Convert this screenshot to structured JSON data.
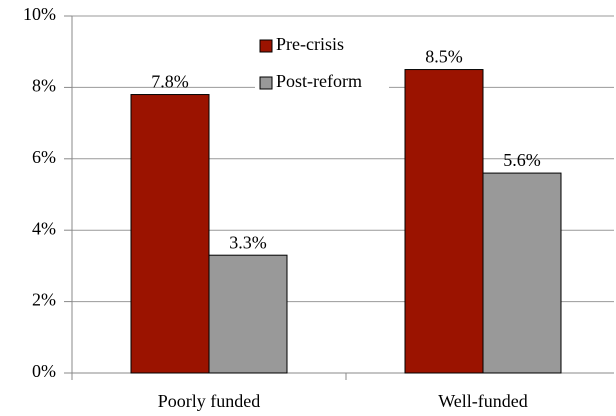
{
  "chart_data": {
    "type": "bar",
    "categories": [
      "Poorly funded",
      "Well-funded"
    ],
    "series": [
      {
        "name": "Pre-crisis",
        "color": "#9b1300",
        "values": [
          7.8,
          8.5
        ],
        "value_labels": [
          "7.8%",
          "8.5%"
        ]
      },
      {
        "name": "Post-reform",
        "color": "#999999",
        "values": [
          3.3,
          5.6
        ],
        "value_labels": [
          "3.3%",
          "5.6%"
        ]
      }
    ],
    "ylim": [
      0,
      10
    ],
    "yticks": [
      {
        "value": 0,
        "label": "0%"
      },
      {
        "value": 2,
        "label": "2%"
      },
      {
        "value": 4,
        "label": "4%"
      },
      {
        "value": 6,
        "label": "6%"
      },
      {
        "value": 8,
        "label": "8%"
      },
      {
        "value": 10,
        "label": "10%"
      }
    ],
    "grid": true,
    "legend": "top"
  }
}
